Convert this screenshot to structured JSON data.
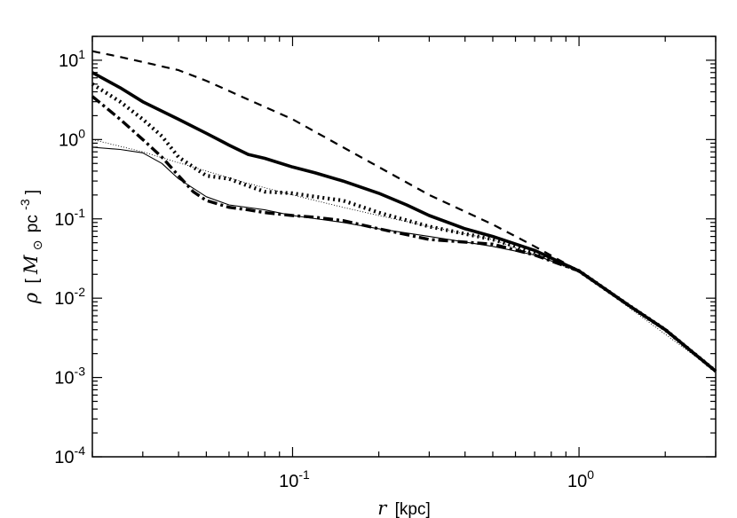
{
  "chart_data": {
    "type": "line",
    "title": "",
    "xlabel": {
      "symbol": "r",
      "unit": "[kpc]"
    },
    "ylabel": {
      "symbol": "ρ",
      "open": "[",
      "mass": "M",
      "sun": "⊙",
      "pc": "pc",
      "exp": "-3",
      "close": "]"
    },
    "x_scale": "log",
    "y_scale": "log",
    "xlim": [
      0.02,
      3.0
    ],
    "ylim": [
      0.0001,
      20
    ],
    "grid": false,
    "legend": "none",
    "x_ticks": [
      {
        "value": 0.1,
        "base": "10",
        "exp": "-1"
      },
      {
        "value": 1,
        "base": "10",
        "exp": "0"
      }
    ],
    "y_ticks": [
      {
        "value": 10,
        "base": "10",
        "exp": "1"
      },
      {
        "value": 1,
        "base": "10",
        "exp": "0"
      },
      {
        "value": 0.1,
        "base": "10",
        "exp": "-1"
      },
      {
        "value": 0.01,
        "base": "10",
        "exp": "-2"
      },
      {
        "value": 0.001,
        "base": "10",
        "exp": "-3"
      },
      {
        "value": 0.0001,
        "base": "10",
        "exp": "-4"
      }
    ],
    "series": [
      {
        "style": "dashed",
        "x": [
          0.02,
          0.025,
          0.03,
          0.04,
          0.05,
          0.07,
          0.1,
          0.15,
          0.2,
          0.3,
          0.5,
          0.7,
          1.0,
          1.5,
          2.0,
          3.0
        ],
        "y": [
          13,
          11,
          9.5,
          7.5,
          5.5,
          3.2,
          1.8,
          0.8,
          0.45,
          0.2,
          0.085,
          0.045,
          0.022,
          0.008,
          0.004,
          0.0012
        ]
      },
      {
        "style": "thick-solid",
        "x": [
          0.02,
          0.025,
          0.03,
          0.04,
          0.05,
          0.06,
          0.07,
          0.08,
          0.1,
          0.12,
          0.15,
          0.2,
          0.25,
          0.3,
          0.4,
          0.5,
          0.7,
          1.0,
          1.5,
          2.0,
          3.0
        ],
        "y": [
          7.0,
          4.5,
          3.0,
          1.8,
          1.2,
          0.85,
          0.65,
          0.58,
          0.45,
          0.38,
          0.3,
          0.21,
          0.15,
          0.11,
          0.075,
          0.06,
          0.04,
          0.022,
          0.008,
          0.004,
          0.0012
        ]
      },
      {
        "style": "dotted",
        "x": [
          0.02,
          0.025,
          0.03,
          0.035,
          0.04,
          0.05,
          0.06,
          0.07,
          0.08,
          0.1,
          0.12,
          0.15,
          0.2,
          0.3,
          0.5,
          0.7,
          1.0,
          1.5,
          2.0,
          3.0
        ],
        "y": [
          5.0,
          3.0,
          1.8,
          1.1,
          0.6,
          0.35,
          0.32,
          0.26,
          0.22,
          0.21,
          0.19,
          0.17,
          0.12,
          0.08,
          0.055,
          0.038,
          0.022,
          0.008,
          0.004,
          0.0012
        ]
      },
      {
        "style": "dash-dot",
        "x": [
          0.02,
          0.025,
          0.03,
          0.035,
          0.04,
          0.045,
          0.05,
          0.06,
          0.07,
          0.08,
          0.1,
          0.12,
          0.15,
          0.2,
          0.3,
          0.5,
          0.7,
          1.0,
          1.5,
          2.0,
          3.0
        ],
        "y": [
          3.5,
          1.8,
          1.0,
          0.6,
          0.35,
          0.22,
          0.17,
          0.14,
          0.13,
          0.12,
          0.11,
          0.105,
          0.095,
          0.075,
          0.055,
          0.048,
          0.035,
          0.022,
          0.008,
          0.004,
          0.0012
        ]
      },
      {
        "style": "thin-dotted",
        "x": [
          0.02,
          0.03,
          0.05,
          0.07,
          0.1,
          0.15,
          0.2,
          0.3,
          0.5,
          1.0,
          3.0
        ],
        "y": [
          1.0,
          0.7,
          0.4,
          0.28,
          0.2,
          0.14,
          0.11,
          0.08,
          0.055,
          0.022,
          0.0012
        ]
      },
      {
        "style": "thin-solid",
        "x": [
          0.02,
          0.025,
          0.03,
          0.035,
          0.04,
          0.05,
          0.06,
          0.08,
          0.1,
          0.15,
          0.2,
          0.3,
          0.5,
          0.7,
          1.0,
          1.5,
          2.0,
          3.0
        ],
        "y": [
          0.8,
          0.75,
          0.68,
          0.5,
          0.32,
          0.19,
          0.15,
          0.13,
          0.11,
          0.09,
          0.075,
          0.06,
          0.045,
          0.035,
          0.022,
          0.008,
          0.004,
          0.0012
        ]
      }
    ]
  }
}
